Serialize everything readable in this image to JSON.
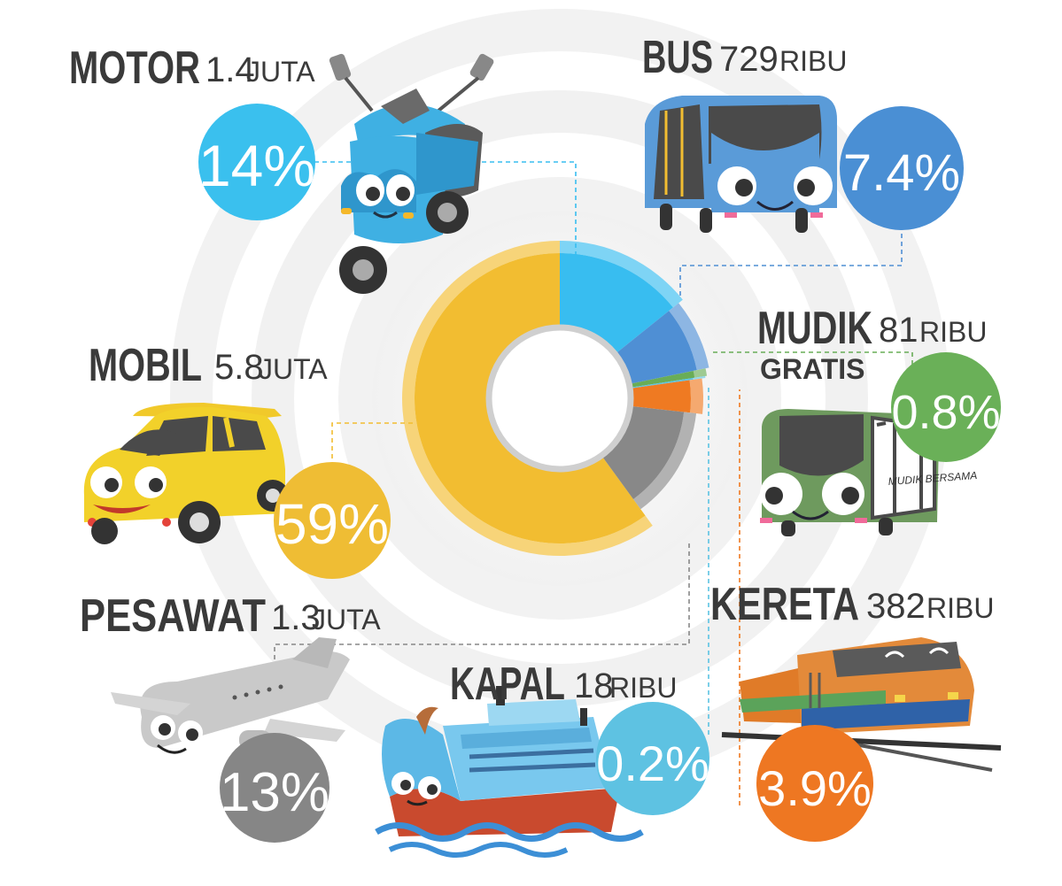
{
  "chart_data": {
    "type": "pie",
    "variant": "donut",
    "title": "",
    "legend": "none",
    "slices": [
      {
        "key": "mobil",
        "label": "MOBIL",
        "amount": "5.8",
        "unit": "JUTA",
        "percent": 59,
        "percent_label": "59%",
        "color": "#f2bd31"
      },
      {
        "key": "motor",
        "label": "MOTOR",
        "amount": "1.4",
        "unit": "JUTA",
        "percent": 14,
        "percent_label": "14%",
        "color": "#38bdf0"
      },
      {
        "key": "bus",
        "label": "BUS",
        "amount": "729",
        "unit": "RIBU",
        "percent": 7.4,
        "percent_label": "7.4%",
        "color": "#4f8fd4"
      },
      {
        "key": "mudik",
        "label": "MUDIK",
        "label_line2": "GRATIS",
        "amount": "81",
        "unit": "RIBU",
        "percent": 0.8,
        "percent_label": "0.8%",
        "color": "#69ad57"
      },
      {
        "key": "kapal",
        "label": "KAPAL",
        "amount": "18",
        "unit": "RIBU",
        "percent": 0.2,
        "percent_label": "0.2%",
        "color": "#5bc3e3"
      },
      {
        "key": "kereta",
        "label": "KERETA",
        "amount": "382",
        "unit": "RIBU",
        "percent": 3.9,
        "percent_label": "3.9%",
        "color": "#ef7a22"
      },
      {
        "key": "pesawat",
        "label": "PESAWAT",
        "amount": "1.3",
        "unit": "JUTA",
        "percent": 13,
        "percent_label": "13%",
        "color": "#888888"
      }
    ]
  },
  "decor": {
    "ring_color": "#eeeeee",
    "hole_stroke": "#cccccc",
    "bus_sign_text": "MUDIK BERSAMA"
  }
}
